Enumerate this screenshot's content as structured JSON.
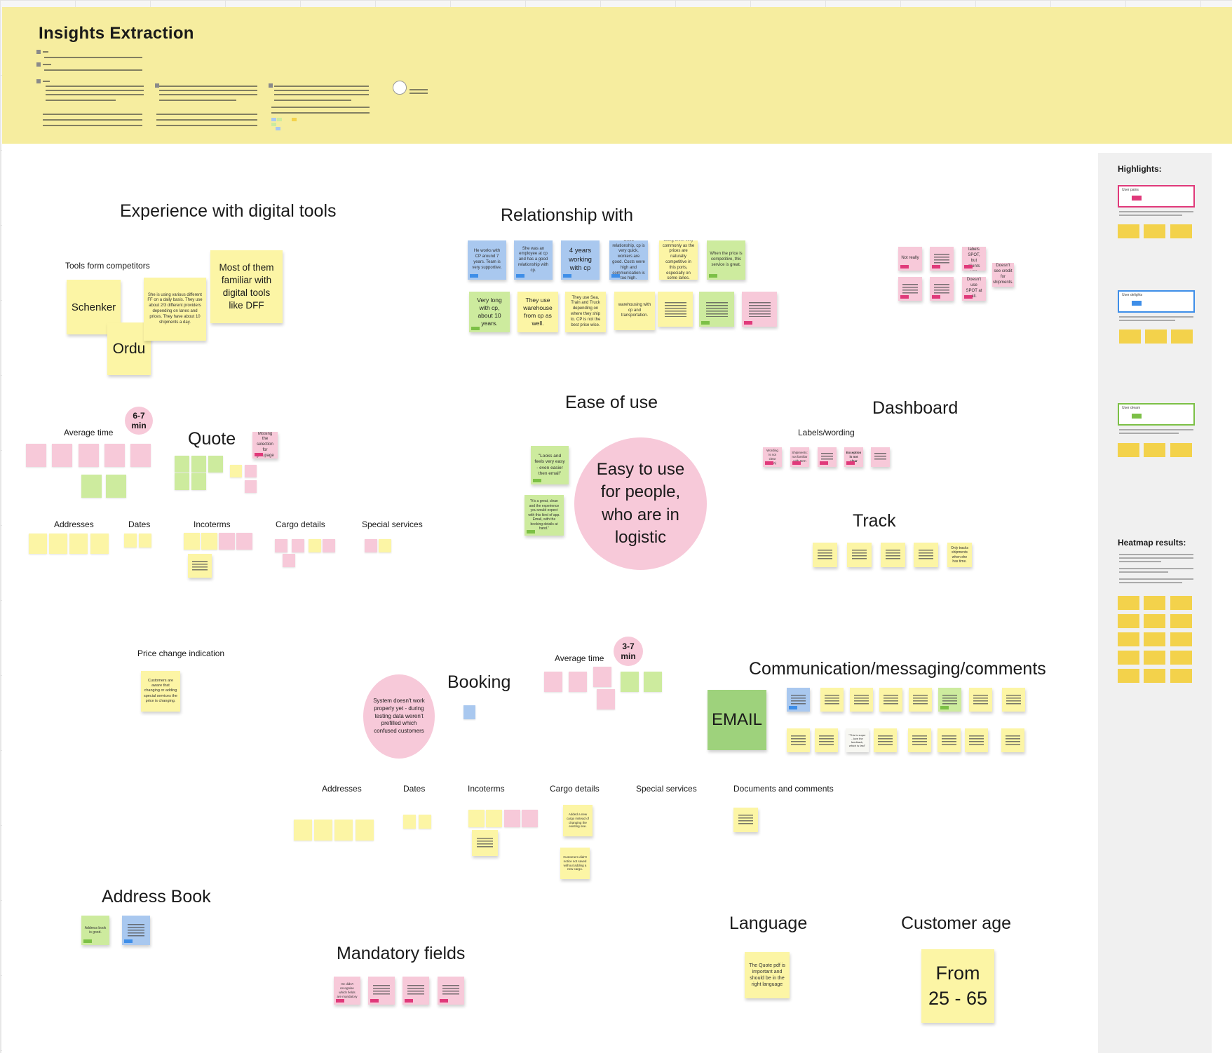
{
  "board": {
    "title": "Insights Extraction"
  },
  "sidebar": {
    "highlights_title": "Highlights:",
    "heatmap_title": "Heatmap results:",
    "cards": [
      {
        "label": "User pains",
        "color": "#e0397a"
      },
      {
        "label": "User delights",
        "color": "#3e8ee8"
      },
      {
        "label": "User dream",
        "color": "#7cc046"
      }
    ]
  },
  "sections": {
    "experience": {
      "title": "Experience with digital tools",
      "tools_label": "Tools form competitors",
      "notes": [
        "Schenker",
        "Ordu",
        "She is using various different FF on a daily basis. They use about 2/3 different providers depending on lanes and prices. They have about 10 shipments a day.",
        "Most of them familiar with digital tools like DFF"
      ]
    },
    "relationship": {
      "title": "Relationship with",
      "notes_top": [
        "He works with CP around 7 years. Team is very supportive.",
        "She was an employee at cp and has a good relationship with cp.",
        "4 years working with cp",
        "Good relationship, cp is very quick, workers are good. Costs were high and communication is too high.",
        "using them very commonly as the prices are naturally competitive in this ports, especially on some lanes.",
        "When the price is competitive, this service is great."
      ],
      "notes_bottom": [
        "Very long with cp, about 10 years.",
        "They use warehouse from cp as well.",
        "They use Sea, Train and Truck depending on where they ship to. CP is not the best price wise.",
        "warehousing with cp and transportation."
      ]
    },
    "ease_of_use": {
      "title": "Ease of use",
      "circle": "Easy to use for people, who are in logistic",
      "notes": [
        "\"Looks and feels very easy - even easier then email\"",
        "\"It's a great, clean and the experience you would expect with this kind of app. Email, with the booking details at hand.\""
      ]
    },
    "dashboard": {
      "title": "Dashboard",
      "labels_label": "Labels/wording",
      "notes": [
        "Wording is not clear (ETA)",
        "Shipments: not familiar with term",
        "",
        "Exception is not clear",
        ""
      ]
    },
    "track": {
      "title": "Track",
      "notes": [
        "",
        "",
        "",
        "",
        "Only tracks shipments when she has time."
      ]
    },
    "top_right_notes": [
      "Not really",
      "",
      "Not labels SPOT, but clients use",
      "Doesn't use SPOT at all.",
      "Doesn't see credit for shipments."
    ],
    "quote": {
      "title": "Quote",
      "avg_label": "Average time",
      "avg_value": "6-7 min",
      "missing_note": "Missing the selection for groupage",
      "categories": [
        "Addresses",
        "Dates",
        "Incoterms",
        "Cargo details",
        "Special services"
      ]
    },
    "price": {
      "label": "Price change indication",
      "note": "Customers are aware that changing or adding special services the price is changing."
    },
    "booking": {
      "title": "Booking",
      "avg_label": "Average time",
      "avg_value": "3-7 min",
      "circle": "System doesn't work properly yet - during testing data weren't prefilled which confused customers",
      "categories": [
        "Addresses",
        "Dates",
        "Incoterms",
        "Cargo details",
        "Special services",
        "Documents and comments"
      ],
      "cargo_notes": [
        "Added a new cargo instead of changing the existing one.",
        "Customers didn't notice not saved without adding a new cargo."
      ]
    },
    "communication": {
      "title": "Communication/messaging/comments",
      "email": "EMAIL",
      "note": "\"This is super - love the feedback, which is fast\""
    },
    "address_book": {
      "title": "Address Book",
      "note": "Address book is good."
    },
    "mandatory": {
      "title": "Mandatory fields",
      "note": "He didn't recognise which fields are mandatory"
    },
    "language": {
      "title": "Language",
      "note": "The Quote pdf is important and should be in the right language"
    },
    "customer_age": {
      "title": "Customer age",
      "note": "From 25 - 65"
    }
  }
}
